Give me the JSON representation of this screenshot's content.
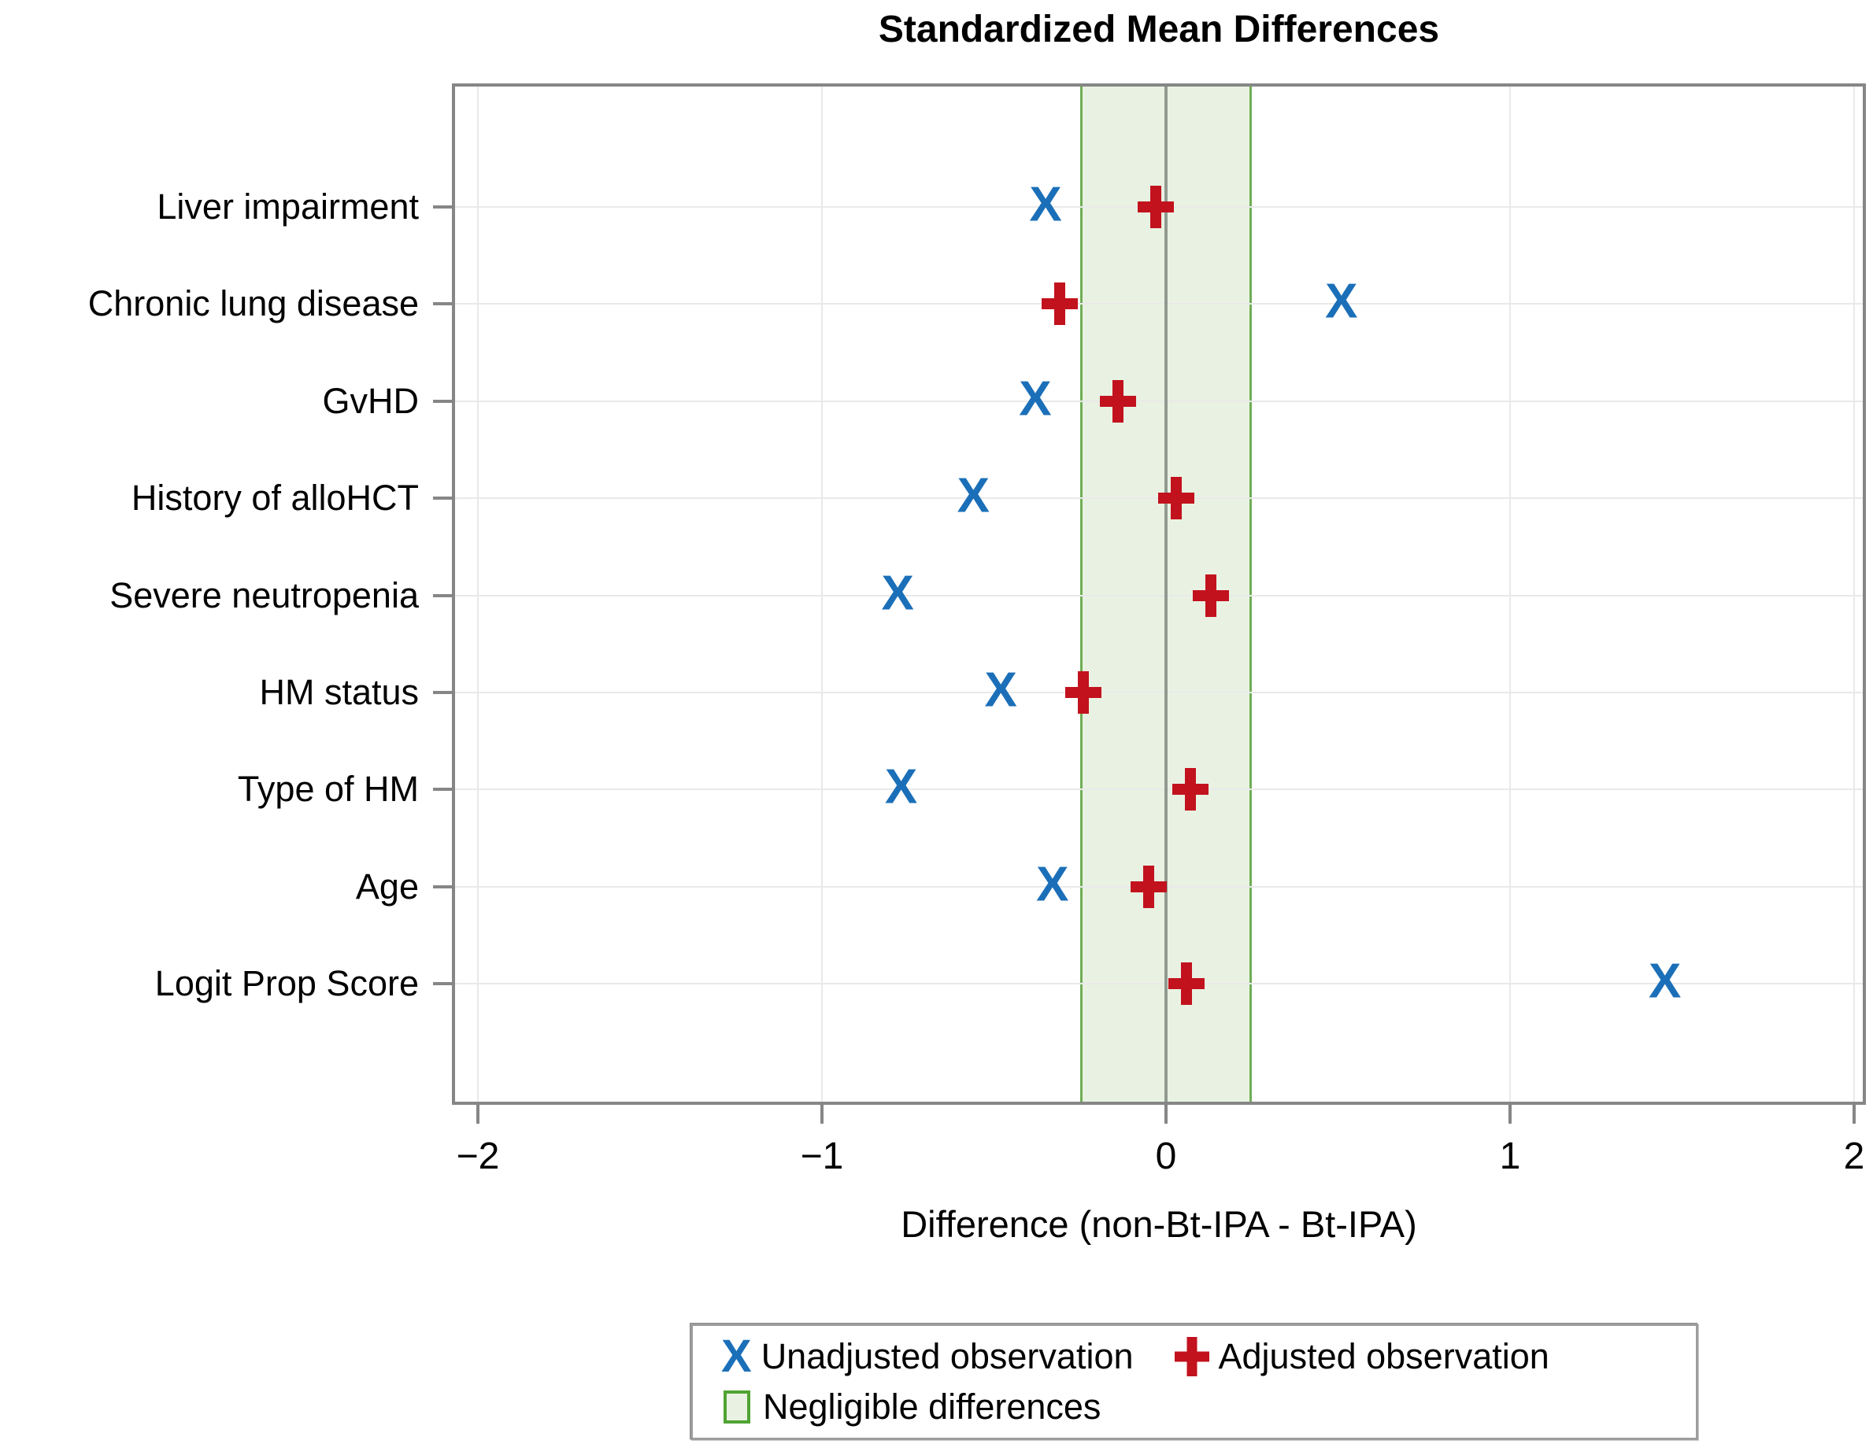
{
  "chart_data": {
    "type": "scatter",
    "title": "Standardized Mean Differences",
    "xlabel": "Difference (non-Bt-IPA - Bt-IPA)",
    "x_ticks": [
      -2,
      -1,
      0,
      1,
      2
    ],
    "x_tick_labels": [
      "−2",
      "−1",
      "0",
      "1",
      "2"
    ],
    "xlim": [
      -2.07,
      2.03
    ],
    "grid": true,
    "legend_position": "bottom",
    "categories": [
      "Liver impairment",
      "Chronic lung disease",
      "GvHD",
      "History of alloHCT",
      "Severe neutropenia",
      "HM status",
      "Type of HM",
      "Age",
      "Logit Prop Score"
    ],
    "series": [
      {
        "name": "Unadjusted observation",
        "marker": "X",
        "color": "#1b6fb8",
        "values": [
          -0.35,
          0.51,
          -0.38,
          -0.56,
          -0.78,
          -0.48,
          -0.77,
          -0.33,
          1.45
        ]
      },
      {
        "name": "Adjusted observation",
        "marker": "+",
        "color": "#c2121e",
        "values": [
          -0.03,
          -0.31,
          -0.14,
          0.03,
          0.13,
          -0.24,
          0.07,
          -0.05,
          0.06
        ]
      }
    ],
    "negligible_band": {
      "label": "Negligible differences",
      "min": -0.25,
      "max": 0.25,
      "fill": "#e9f2e2",
      "edge": "#6fae55",
      "legend_edge": "#4fa332"
    },
    "reference_line": {
      "x": 0,
      "color": "#919a90"
    }
  },
  "colors": {
    "frame": "#868686",
    "gridline": "#e9e9e9",
    "text": "#000000",
    "legend_border": "#9d9d9d"
  }
}
